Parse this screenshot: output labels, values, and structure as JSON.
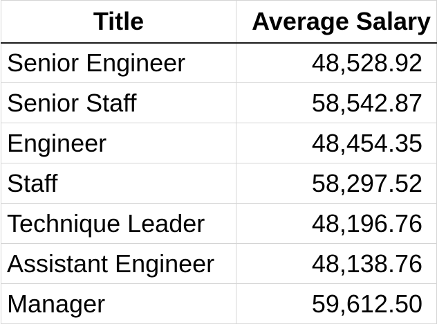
{
  "table": {
    "headers": {
      "title": "Title",
      "salary": "Average Salary"
    },
    "rows": [
      {
        "title": "Senior Engineer",
        "salary": "48,528.92"
      },
      {
        "title": "Senior Staff",
        "salary": "58,542.87"
      },
      {
        "title": "Engineer",
        "salary": "48,454.35"
      },
      {
        "title": "Staff",
        "salary": "58,297.52"
      },
      {
        "title": "Technique Leader",
        "salary": "48,196.76"
      },
      {
        "title": "Assistant Engineer",
        "salary": "48,138.76"
      },
      {
        "title": "Manager",
        "salary": "59,612.50"
      }
    ]
  }
}
